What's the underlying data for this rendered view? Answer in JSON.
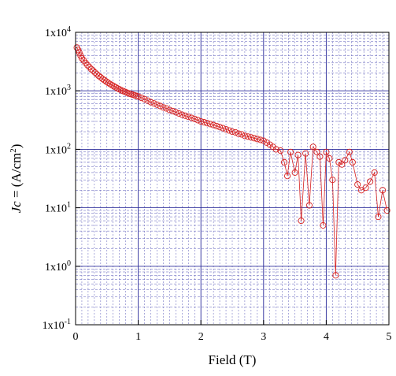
{
  "chart_data": {
    "type": "scatter",
    "title": "",
    "xlabel": "Field (T)",
    "ylabel_prefix": "Jc",
    "ylabel_units": " = (A/cm",
    "ylabel_units_sup": "2",
    "ylabel_units_close": ")",
    "x_scale": "linear",
    "y_scale": "log",
    "xlim": [
      0,
      5
    ],
    "ylim": [
      0.1,
      10000
    ],
    "x_ticks": [
      0,
      1,
      2,
      3,
      4,
      5
    ],
    "x_tick_labels": [
      "0",
      "1",
      "2",
      "3",
      "4",
      "5"
    ],
    "y_ticks": [
      0.1,
      1,
      10,
      100,
      1000,
      10000
    ],
    "y_tick_label_base": [
      "1x10",
      "1x10",
      "1x10",
      "1x10",
      "1x10",
      "1x10"
    ],
    "y_tick_label_exp": [
      "-1",
      "0",
      "1",
      "2",
      "3",
      "4"
    ],
    "grid": true,
    "colors": {
      "series": "#d62020",
      "grid_major": "#2b2b9a",
      "grid_minor": "#5a5ab8",
      "frame": "#000000"
    },
    "series": [
      {
        "marker": "open-circle",
        "x": [
          0.02,
          0.04,
          0.06,
          0.08,
          0.1,
          0.13,
          0.16,
          0.19,
          0.22,
          0.25,
          0.28,
          0.31,
          0.34,
          0.37,
          0.4,
          0.43,
          0.46,
          0.49,
          0.52,
          0.55,
          0.58,
          0.61,
          0.64,
          0.67,
          0.7,
          0.73,
          0.76,
          0.79,
          0.82,
          0.85,
          0.88,
          0.91,
          0.94,
          0.97,
          1.0,
          1.05,
          1.1,
          1.15,
          1.2,
          1.25,
          1.3,
          1.35,
          1.4,
          1.45,
          1.5,
          1.55,
          1.6,
          1.65,
          1.7,
          1.75,
          1.8,
          1.85,
          1.9,
          1.95,
          2.0,
          2.05,
          2.1,
          2.15,
          2.2,
          2.25,
          2.3,
          2.35,
          2.4,
          2.45,
          2.5,
          2.55,
          2.6,
          2.65,
          2.7,
          2.75,
          2.8,
          2.85,
          2.9,
          2.95,
          3.0,
          3.05,
          3.1,
          3.15,
          3.2,
          3.27,
          3.33,
          3.38,
          3.43,
          3.5,
          3.55,
          3.6,
          3.67,
          3.73,
          3.79,
          3.85,
          3.9,
          3.95,
          4.0,
          4.05,
          4.1,
          4.15,
          4.2,
          4.25,
          4.3,
          4.37,
          4.42,
          4.5,
          4.56,
          4.63,
          4.7,
          4.77,
          4.83,
          4.9,
          4.97
        ],
        "y": [
          5500,
          5000,
          4500,
          4000,
          3600,
          3300,
          3000,
          2750,
          2550,
          2350,
          2200,
          2050,
          1920,
          1800,
          1700,
          1600,
          1520,
          1440,
          1370,
          1310,
          1250,
          1200,
          1150,
          1100,
          1060,
          1020,
          990,
          960,
          930,
          900,
          880,
          860,
          840,
          820,
          800,
          760,
          720,
          680,
          640,
          610,
          580,
          550,
          520,
          500,
          470,
          450,
          430,
          410,
          390,
          375,
          360,
          345,
          330,
          315,
          300,
          290,
          280,
          270,
          260,
          250,
          240,
          230,
          220,
          210,
          200,
          195,
          185,
          180,
          170,
          165,
          160,
          155,
          150,
          145,
          140,
          130,
          120,
          110,
          100,
          95,
          60,
          35,
          90,
          40,
          80,
          6,
          85,
          11,
          110,
          90,
          75,
          5,
          90,
          70,
          30,
          0.7,
          60,
          55,
          65,
          90,
          60,
          25,
          20,
          22,
          28,
          40,
          7,
          20,
          9
        ]
      }
    ]
  }
}
